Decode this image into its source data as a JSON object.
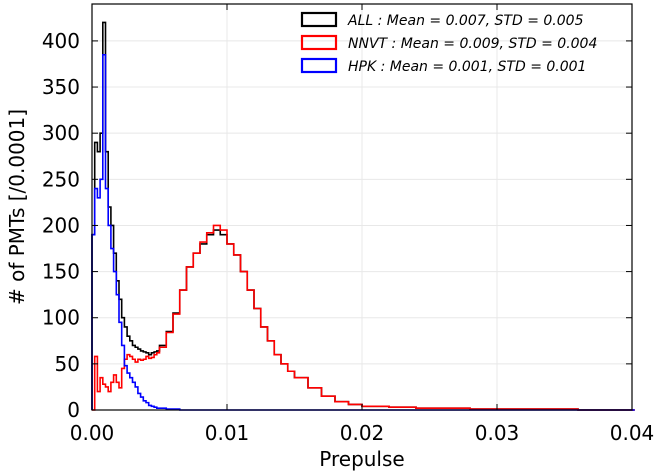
{
  "chart_data": {
    "type": "line",
    "xlabel": "Prepulse",
    "ylabel": "# of PMTs [/0.0001]",
    "xlim": [
      0,
      0.04
    ],
    "ylim": [
      0,
      440
    ],
    "x_ticks": [
      "0.00",
      "0.01",
      "0.02",
      "0.03",
      "0.04"
    ],
    "x_tick_values": [
      0,
      0.01,
      0.02,
      0.03,
      0.04
    ],
    "y_ticks": [
      "0",
      "50",
      "100",
      "150",
      "200",
      "250",
      "300",
      "350",
      "400"
    ],
    "y_tick_values": [
      0,
      50,
      100,
      150,
      200,
      250,
      300,
      350,
      400
    ],
    "grid": true,
    "legend_position": "top-right",
    "series": [
      {
        "name": "ALL : Mean = 0.007, STD = 0.005",
        "color": "#000000",
        "x": [
          0.0,
          0.0002,
          0.0004,
          0.0006,
          0.0008,
          0.001,
          0.0012,
          0.0014,
          0.0016,
          0.0018,
          0.002,
          0.0022,
          0.0024,
          0.0026,
          0.0028,
          0.003,
          0.0032,
          0.0034,
          0.0036,
          0.0038,
          0.004,
          0.0042,
          0.0044,
          0.0046,
          0.0048,
          0.005,
          0.0055,
          0.006,
          0.0065,
          0.007,
          0.0075,
          0.008,
          0.0085,
          0.009,
          0.0095,
          0.01,
          0.0105,
          0.011,
          0.0115,
          0.012,
          0.0125,
          0.013,
          0.0135,
          0.014,
          0.0145,
          0.015,
          0.016,
          0.017,
          0.018,
          0.019,
          0.02,
          0.022,
          0.024,
          0.026,
          0.028,
          0.03,
          0.033,
          0.036,
          0.04
        ],
        "y": [
          190,
          290,
          280,
          300,
          420,
          280,
          220,
          200,
          170,
          140,
          120,
          100,
          90,
          80,
          75,
          70,
          68,
          66,
          64,
          63,
          62,
          60,
          62,
          63,
          64,
          70,
          85,
          105,
          130,
          155,
          170,
          180,
          190,
          195,
          190,
          180,
          168,
          150,
          130,
          110,
          90,
          75,
          60,
          50,
          42,
          35,
          24,
          15,
          9,
          6,
          4,
          3,
          2,
          2,
          1,
          1,
          1,
          0,
          0
        ]
      },
      {
        "name": "NNVT : Mean = 0.009, STD = 0.004",
        "color": "#ff0000",
        "x": [
          0.0,
          0.0002,
          0.0004,
          0.0006,
          0.0008,
          0.001,
          0.0012,
          0.0014,
          0.0016,
          0.0018,
          0.002,
          0.0022,
          0.0024,
          0.0026,
          0.0028,
          0.003,
          0.0032,
          0.0034,
          0.0036,
          0.0038,
          0.004,
          0.0042,
          0.0044,
          0.0046,
          0.0048,
          0.005,
          0.0055,
          0.006,
          0.0065,
          0.007,
          0.0075,
          0.008,
          0.0085,
          0.009,
          0.0095,
          0.01,
          0.0105,
          0.011,
          0.0115,
          0.012,
          0.0125,
          0.013,
          0.0135,
          0.014,
          0.0145,
          0.015,
          0.016,
          0.017,
          0.018,
          0.019,
          0.02,
          0.022,
          0.024,
          0.026,
          0.028,
          0.03,
          0.033,
          0.036,
          0.04
        ],
        "y": [
          0,
          58,
          20,
          35,
          28,
          25,
          20,
          30,
          38,
          30,
          24,
          45,
          55,
          60,
          58,
          55,
          52,
          55,
          54,
          55,
          58,
          56,
          57,
          60,
          62,
          68,
          84,
          104,
          130,
          155,
          170,
          182,
          192,
          200,
          195,
          180,
          168,
          150,
          130,
          110,
          90,
          75,
          60,
          50,
          42,
          35,
          24,
          15,
          9,
          6,
          4,
          3,
          2,
          2,
          1,
          1,
          1,
          0,
          0
        ]
      },
      {
        "name": "HPK : Mean = 0.001, STD = 0.001",
        "color": "#0000ff",
        "x": [
          0.0,
          0.0002,
          0.0004,
          0.0006,
          0.0008,
          0.001,
          0.0012,
          0.0014,
          0.0016,
          0.0018,
          0.002,
          0.0022,
          0.0024,
          0.0026,
          0.0028,
          0.003,
          0.0032,
          0.0034,
          0.0036,
          0.0038,
          0.004,
          0.0042,
          0.0044,
          0.0046,
          0.0048,
          0.005,
          0.0055,
          0.006,
          0.0065,
          0.007,
          0.008,
          0.01,
          0.04
        ],
        "y": [
          190,
          240,
          230,
          250,
          385,
          240,
          200,
          175,
          150,
          125,
          95,
          70,
          48,
          40,
          35,
          30,
          25,
          18,
          14,
          10,
          8,
          5,
          4,
          3,
          2,
          2,
          1,
          1,
          0,
          0,
          0,
          0,
          0
        ]
      }
    ]
  }
}
